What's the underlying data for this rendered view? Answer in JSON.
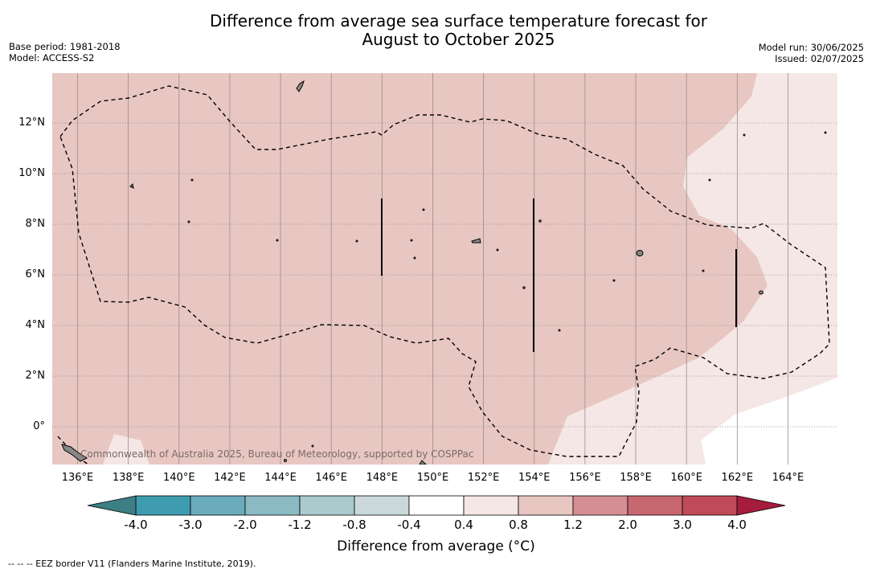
{
  "title": {
    "line1": "Difference from average sea surface temperature forecast for",
    "line2": "August to October 2025"
  },
  "meta_left": {
    "base_period": "Base period: 1981-2018",
    "model": "Model: ACCESS-S2"
  },
  "meta_right": {
    "model_run": "Model run: 30/06/2025",
    "issued": "Issued: 02/07/2025"
  },
  "map": {
    "y_ticks": [
      {
        "value": 12,
        "label": "12°N"
      },
      {
        "value": 10,
        "label": "10°N"
      },
      {
        "value": 8,
        "label": "8°N"
      },
      {
        "value": 6,
        "label": "6°N"
      },
      {
        "value": 4,
        "label": "4°N"
      },
      {
        "value": 2,
        "label": "2°N"
      },
      {
        "value": 0,
        "label": "0°"
      }
    ],
    "x_ticks": [
      {
        "value": 136,
        "label": "136°E"
      },
      {
        "value": 138,
        "label": "138°E"
      },
      {
        "value": 140,
        "label": "140°E"
      },
      {
        "value": 142,
        "label": "142°E"
      },
      {
        "value": 144,
        "label": "144°E"
      },
      {
        "value": 146,
        "label": "146°E"
      },
      {
        "value": 148,
        "label": "148°E"
      },
      {
        "value": 150,
        "label": "150°E"
      },
      {
        "value": 152,
        "label": "152°E"
      },
      {
        "value": 154,
        "label": "154°E"
      },
      {
        "value": 156,
        "label": "156°E"
      },
      {
        "value": 158,
        "label": "158°E"
      },
      {
        "value": 160,
        "label": "160°E"
      },
      {
        "value": 162,
        "label": "162°E"
      },
      {
        "value": 164,
        "label": "164°E"
      }
    ],
    "lon_range": [
      135,
      166
    ],
    "lat_range": [
      -1.5,
      14
    ],
    "fill_colors": {
      "band_0_8_to_1_2": "#e8c7c2",
      "band_0_4_to_0_8": "#f5e7e5",
      "band_neg0_4_to_0_4": "#ffffff"
    },
    "attribution": "Commonwealth of Australia 2025, Bureau of Meteorology, supported by COSPPac"
  },
  "colorbar": {
    "labels": [
      "-4.0",
      "-3.0",
      "-2.0",
      "-1.2",
      "-0.8",
      "-0.4",
      "0.4",
      "0.8",
      "1.2",
      "2.0",
      "3.0",
      "4.0"
    ],
    "colors": [
      "#3f9cb0",
      "#6aacbb",
      "#8bbac4",
      "#aacacd",
      "#cad8d9",
      "#ffffff",
      "#f5e7e5",
      "#e8c7c2",
      "#d48e94",
      "#c76770",
      "#bf4a58"
    ],
    "extend_low_color": "#3c7f85",
    "extend_high_color": "#a61c3c",
    "title": "Difference from average (°C)"
  },
  "footnote": "--  --  -- EEZ border V11 (Flanders Marine Institute, 2019)."
}
